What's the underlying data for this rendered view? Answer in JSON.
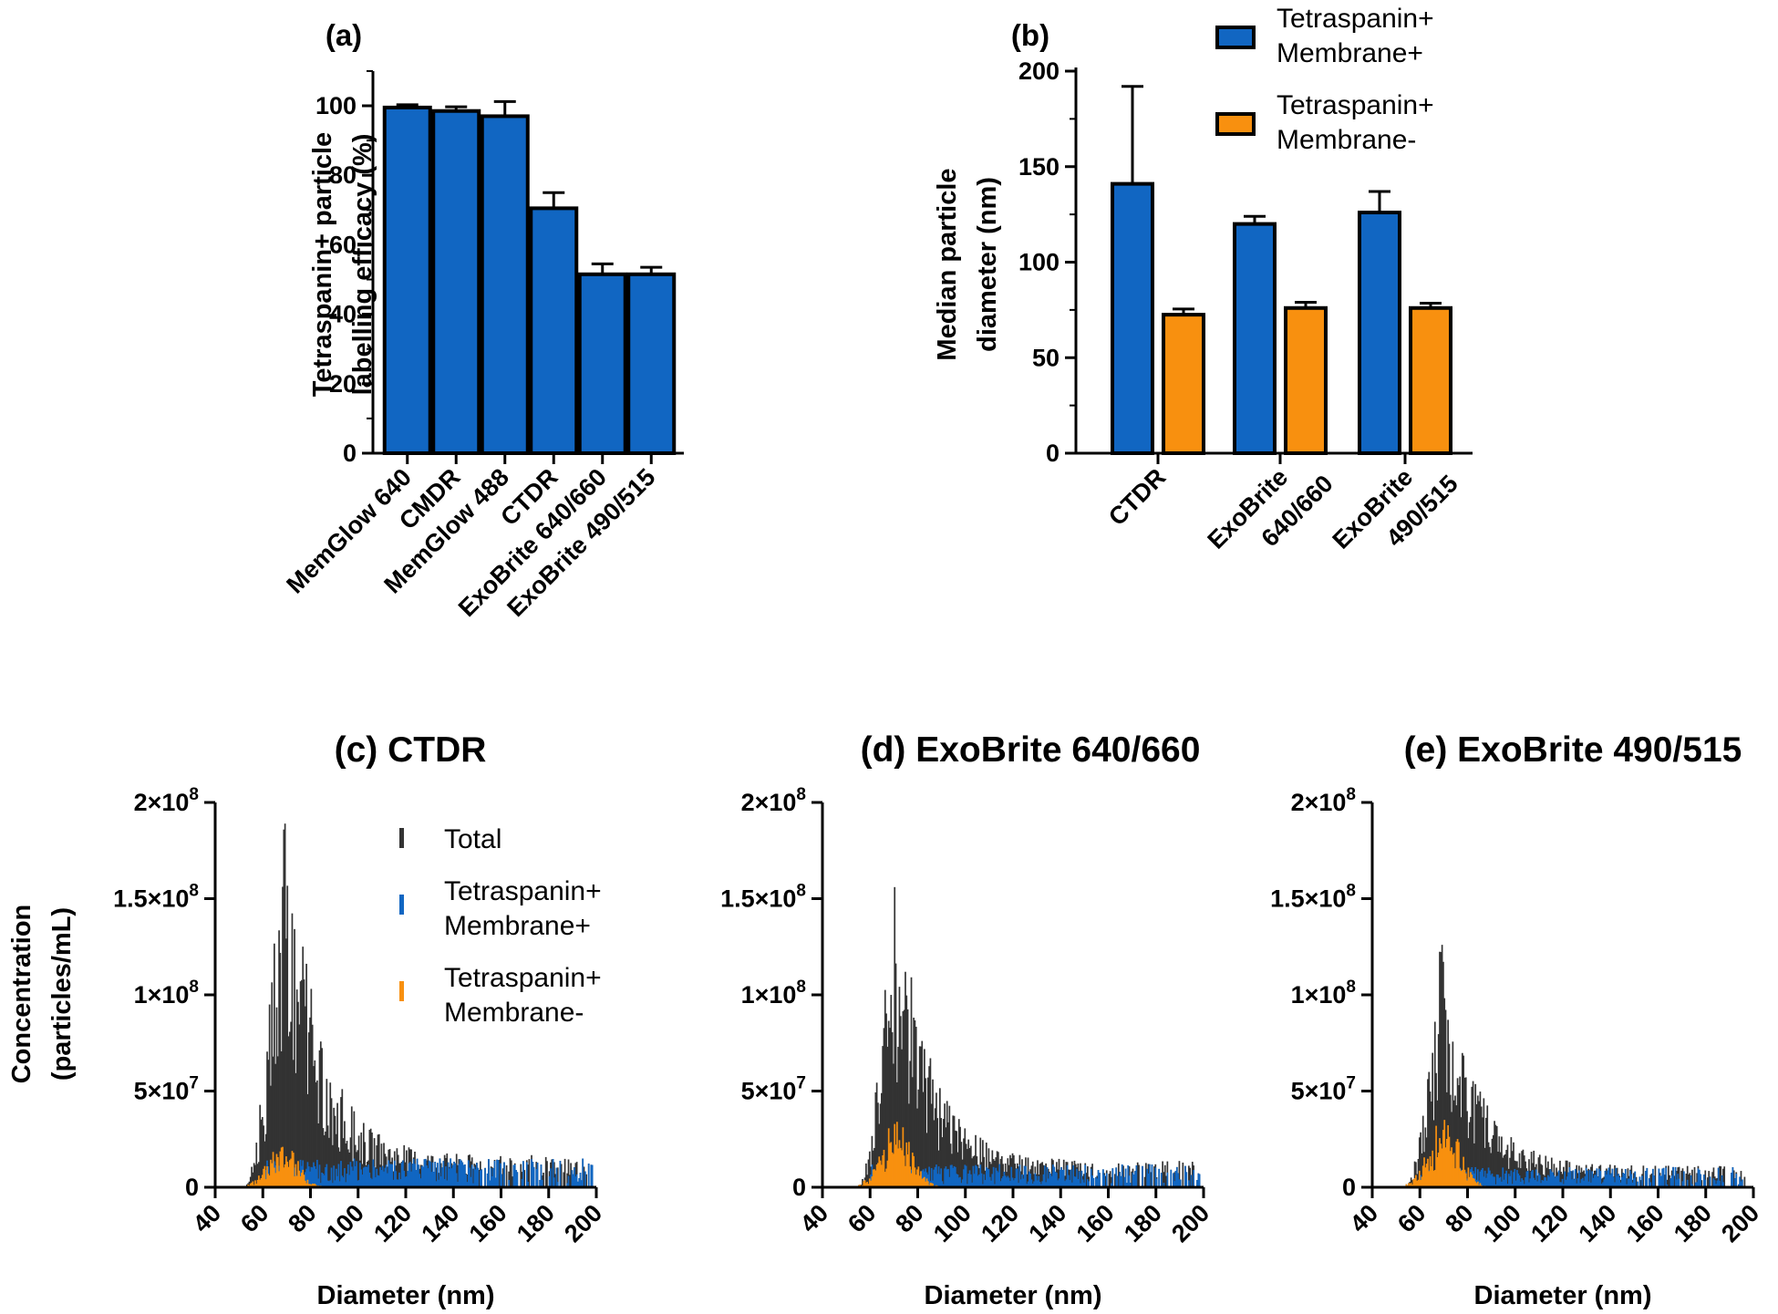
{
  "colors": {
    "blue": "#1166c2",
    "orange": "#f8900f",
    "dark": "#333333",
    "axis": "#000000"
  },
  "chart_data": [
    {
      "id": "a",
      "type": "bar",
      "panel_label": "(a)",
      "title": "",
      "ylabel_line1": "Tetraspanin+ particle",
      "ylabel_line2": "labelling efficacy  (%)",
      "xlabel": "",
      "categories": [
        "MemGlow 640",
        "CMDR",
        "MemGlow 488",
        "CTDR",
        "ExoBrite 640/660",
        "ExoBrite 490/515"
      ],
      "values": [
        99.5,
        98.5,
        97,
        70.5,
        51.5,
        51.5
      ],
      "errors": [
        0.8,
        1.2,
        4.2,
        4.5,
        3,
        2
      ],
      "ylim": [
        0,
        110
      ],
      "yticks": [
        0,
        20,
        40,
        60,
        80,
        100
      ],
      "ytick_labels": [
        "0",
        "20",
        "40",
        "60",
        "80",
        "100"
      ],
      "grid": false
    },
    {
      "id": "b",
      "type": "bar",
      "panel_label": "(b)",
      "ylabel_line1": "Median particle",
      "ylabel_line2": "diameter (nm)",
      "xlabel": "",
      "groups": [
        {
          "line1": "CTDR",
          "line2": ""
        },
        {
          "line1": "ExoBrite",
          "line2": "640/660"
        },
        {
          "line1": "ExoBrite",
          "line2": "490/515"
        }
      ],
      "series": [
        {
          "name": "Tetraspanin+ Membrane+",
          "legend_line1": "Tetraspanin+",
          "legend_line2": "Membrane+",
          "values": [
            141,
            120,
            126
          ],
          "errors": [
            51,
            4,
            11
          ]
        },
        {
          "name": "Tetraspanin+ Membrane-",
          "legend_line1": "Tetraspanin+",
          "legend_line2": "Membrane-",
          "values": [
            72.5,
            76,
            76
          ],
          "errors": [
            3,
            3,
            2.5
          ]
        }
      ],
      "ylim": [
        0,
        200
      ],
      "yticks": [
        0,
        50,
        100,
        150,
        200
      ],
      "ytick_labels": [
        "0",
        "50",
        "100",
        "150",
        "200"
      ],
      "legend": "top-right",
      "grid": false
    },
    {
      "id": "c",
      "type": "bar",
      "subtype": "histogram",
      "title": "(c) CTDR",
      "xlabel": "Diameter (nm)",
      "ylabel_line1": "Concentration",
      "ylabel_line2": "(particles/mL)",
      "xlim": [
        40,
        200
      ],
      "xticks": [
        40,
        60,
        80,
        100,
        120,
        140,
        160,
        180,
        200
      ],
      "ylim": [
        0,
        200000000
      ],
      "ytick_values": [
        0,
        50000000,
        100000000,
        150000000,
        200000000
      ],
      "ytick_labels": [
        {
          "base": "0",
          "exp": ""
        },
        {
          "base": "5×10",
          "exp": "7"
        },
        {
          "base": "1×10",
          "exp": "8"
        },
        {
          "base": "1.5×10",
          "exp": "8"
        },
        {
          "base": "2×10",
          "exp": "8"
        }
      ],
      "legend": [
        {
          "line1": "Total",
          "line2": ""
        },
        {
          "line1": "Tetraspanin+",
          "line2": "Membrane+"
        },
        {
          "line1": "Tetraspanin+",
          "line2": "Membrane-"
        }
      ],
      "series": [
        {
          "name": "Total",
          "peak_nm": 69,
          "peak_value": 189000000,
          "range_nm": [
            52,
            198
          ]
        },
        {
          "name": "Tetraspanin+ Membrane+",
          "typical_value": 10000000,
          "range_nm": [
            60,
            198
          ]
        },
        {
          "name": "Tetraspanin+ Membrane-",
          "peak_nm": 68,
          "peak_value": 21000000,
          "range_nm": [
            52,
            90
          ]
        }
      ]
    },
    {
      "id": "d",
      "type": "bar",
      "subtype": "histogram",
      "title": "(d) ExoBrite 640/660",
      "xlabel": "Diameter (nm)",
      "xlim": [
        40,
        200
      ],
      "xticks": [
        40,
        60,
        80,
        100,
        120,
        140,
        160,
        180,
        200
      ],
      "ylim": [
        0,
        200000000
      ],
      "ytick_values": [
        0,
        50000000,
        100000000,
        150000000,
        200000000
      ],
      "ytick_labels": [
        {
          "base": "0",
          "exp": ""
        },
        {
          "base": "5×10",
          "exp": "7"
        },
        {
          "base": "1×10",
          "exp": "8"
        },
        {
          "base": "1.5×10",
          "exp": "8"
        },
        {
          "base": "2×10",
          "exp": "8"
        }
      ],
      "series": [
        {
          "name": "Total",
          "peak_nm": 70,
          "peak_value": 156000000,
          "range_nm": [
            55,
            198
          ]
        },
        {
          "name": "Tetraspanin+ Membrane+",
          "typical_value": 8000000,
          "range_nm": [
            60,
            198
          ]
        },
        {
          "name": "Tetraspanin+ Membrane-",
          "peak_nm": 71,
          "peak_value": 34000000,
          "range_nm": [
            55,
            95
          ]
        }
      ]
    },
    {
      "id": "e",
      "type": "bar",
      "subtype": "histogram",
      "title": "(e) ExoBrite 490/515",
      "xlabel": "Diameter (nm)",
      "xlim": [
        40,
        200
      ],
      "xticks": [
        40,
        60,
        80,
        100,
        120,
        140,
        160,
        180,
        200
      ],
      "ylim": [
        0,
        200000000
      ],
      "ytick_values": [
        0,
        50000000,
        100000000,
        150000000,
        200000000
      ],
      "ytick_labels": [
        {
          "base": "0",
          "exp": ""
        },
        {
          "base": "5×10",
          "exp": "7"
        },
        {
          "base": "1×10",
          "exp": "8"
        },
        {
          "base": "1.5×10",
          "exp": "8"
        },
        {
          "base": "2×10",
          "exp": "8"
        }
      ],
      "series": [
        {
          "name": "Total",
          "peak_nm": 69,
          "peak_value": 126000000,
          "range_nm": [
            54,
            196
          ]
        },
        {
          "name": "Tetraspanin+ Membrane+",
          "typical_value": 7000000,
          "range_nm": [
            60,
            196
          ]
        },
        {
          "name": "Tetraspanin+ Membrane-",
          "peak_nm": 70,
          "peak_value": 35000000,
          "range_nm": [
            54,
            95
          ]
        }
      ]
    }
  ]
}
